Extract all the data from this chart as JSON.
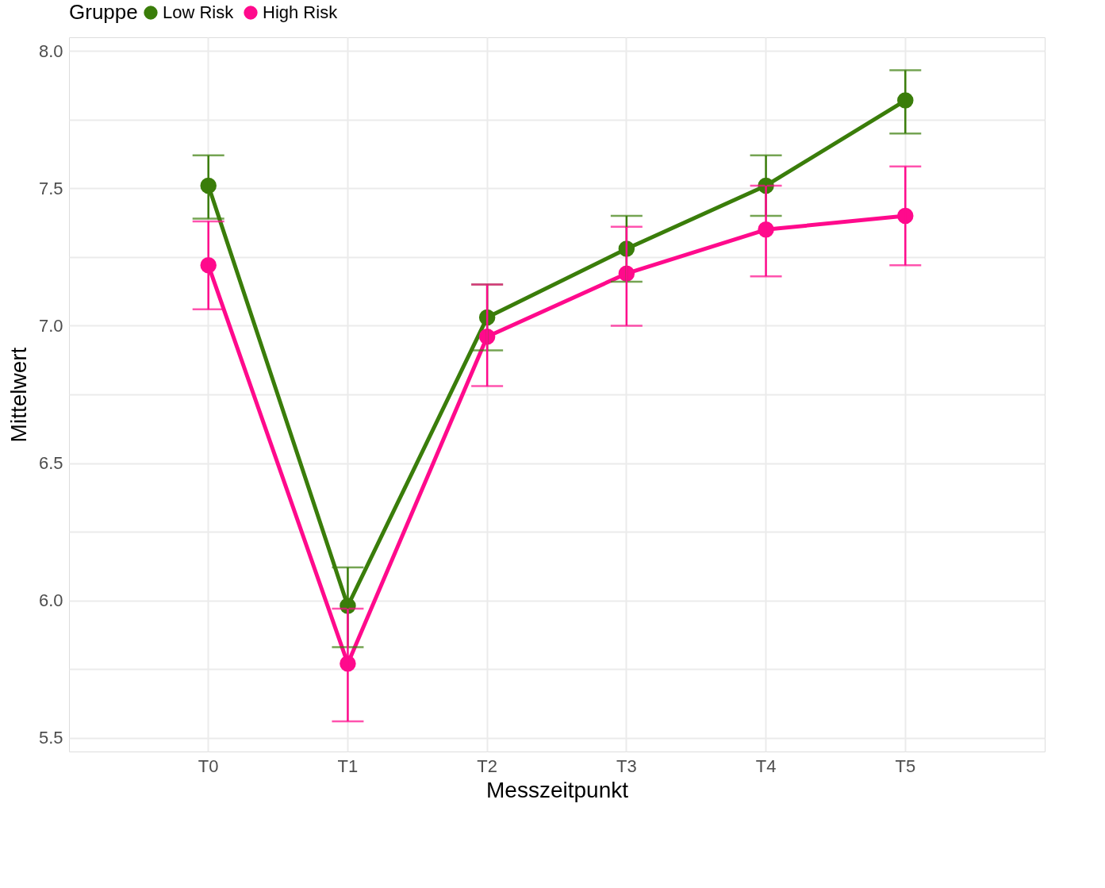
{
  "chart_data": {
    "type": "line",
    "xlabel": "Messzeitpunkt",
    "ylabel": "Mittelwert",
    "legend_title": "Gruppe",
    "legend": "top",
    "grid": true,
    "marker": "circle",
    "line_style": "solid",
    "categories": [
      "T0",
      "T1",
      "T2",
      "T3",
      "T4",
      "T5"
    ],
    "ylim": [
      5.45,
      8.05
    ],
    "yticks": [
      {
        "value": 5.5,
        "label": "5.5"
      },
      {
        "value": 5.75,
        "label": null
      },
      {
        "value": 6,
        "label": "6.0"
      },
      {
        "value": 6.25,
        "label": null
      },
      {
        "value": 6.5,
        "label": "6.5"
      },
      {
        "value": 6.75,
        "label": null
      },
      {
        "value": 7,
        "label": "7.0"
      },
      {
        "value": 7.25,
        "label": null
      },
      {
        "value": 7.5,
        "label": "7.5"
      },
      {
        "value": 7.75,
        "label": null
      },
      {
        "value": 8,
        "label": "8.0"
      }
    ],
    "series": [
      {
        "name": "Low Risk",
        "color": "#3a7d0a",
        "values": [
          7.51,
          5.98,
          7.03,
          7.28,
          7.51,
          7.82
        ],
        "errors": [
          [
            7.39,
            7.62
          ],
          [
            5.83,
            6.12
          ],
          [
            6.91,
            7.15
          ],
          [
            7.16,
            7.4
          ],
          [
            7.4,
            7.62
          ],
          [
            7.7,
            7.93
          ]
        ]
      },
      {
        "name": "High Risk",
        "color": "#ff0a8c",
        "values": [
          7.22,
          5.77,
          6.96,
          7.19,
          7.35,
          7.4
        ],
        "errors": [
          [
            7.06,
            7.38
          ],
          [
            5.56,
            5.97
          ],
          [
            6.78,
            7.15
          ],
          [
            7.0,
            7.36
          ],
          [
            7.18,
            7.51
          ],
          [
            7.22,
            7.58
          ]
        ]
      }
    ]
  }
}
